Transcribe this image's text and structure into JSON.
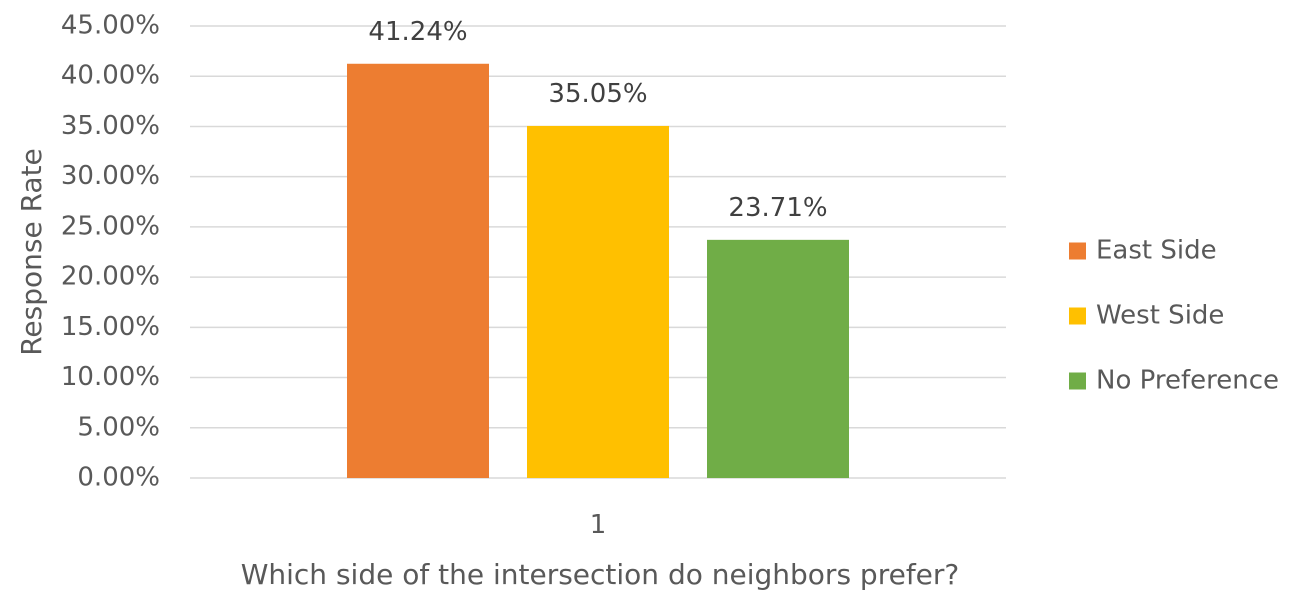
{
  "chart_data": {
    "type": "bar",
    "title": "",
    "xlabel": "Which side of the intersection do neighbors prefer?",
    "ylabel": "Response Rate",
    "categories": [
      "1"
    ],
    "series": [
      {
        "name": "East Side",
        "values": [
          41.24
        ],
        "color": "#ED7D31",
        "label": "41.24%"
      },
      {
        "name": "West Side",
        "values": [
          35.05
        ],
        "color": "#FFC000",
        "label": "35.05%"
      },
      {
        "name": "No Preference",
        "values": [
          23.71
        ],
        "color": "#70AD47",
        "label": "23.71%"
      }
    ],
    "ylim": [
      0,
      45
    ],
    "y_ticks": [
      {
        "value": 0,
        "label": "0.00%"
      },
      {
        "value": 5,
        "label": "5.00%"
      },
      {
        "value": 10,
        "label": "10.00%"
      },
      {
        "value": 15,
        "label": "15.00%"
      },
      {
        "value": 20,
        "label": "20.00%"
      },
      {
        "value": 25,
        "label": "25.00%"
      },
      {
        "value": 30,
        "label": "30.00%"
      },
      {
        "value": 35,
        "label": "35.00%"
      },
      {
        "value": 40,
        "label": "40.00%"
      },
      {
        "value": 45,
        "label": "45.00%"
      }
    ],
    "grid": true,
    "legend_position": "right"
  }
}
